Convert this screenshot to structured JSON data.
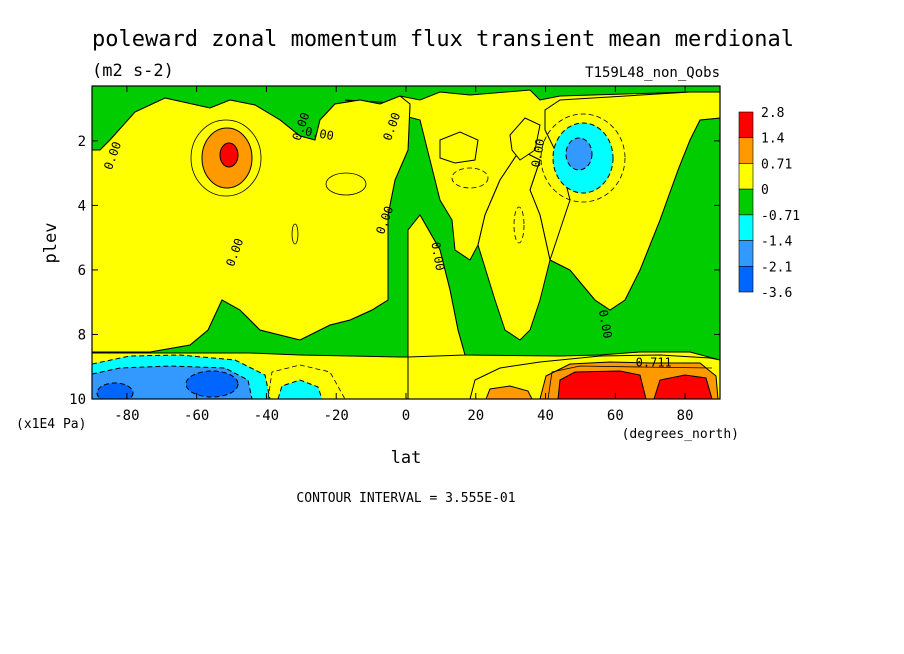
{
  "chart_data": {
    "type": "heatmap",
    "title": "poleward zonal momentum flux transient mean merdional",
    "units": "(m2 s-2)",
    "dataset": "T159L48_non_Qobs",
    "xlabel": "lat",
    "xunits": "(degrees_north)",
    "ylabel": "plev",
    "yunits": "(x1E4 Pa)",
    "xlim": [
      -90,
      90
    ],
    "ylim": [
      10,
      0.3
    ],
    "xticks": [
      -80,
      -60,
      -40,
      -20,
      0,
      20,
      40,
      60,
      80
    ],
    "xtick_labels": [
      "-80",
      "-60",
      "-40",
      "-20",
      "0",
      "20",
      "40",
      "60",
      "80"
    ],
    "yticks": [
      2,
      4,
      6,
      8,
      10
    ],
    "ytick_labels": [
      "2",
      "4",
      "6",
      "8",
      "10"
    ],
    "contour_interval_text": "CONTOUR INTERVAL = 3.555E-01",
    "colorbar": {
      "labels": [
        "2.8",
        "1.4",
        "0.71",
        "0",
        "-0.71",
        "-1.4",
        "-2.1",
        "-3.6"
      ],
      "colors": [
        "#ff0000",
        "#ff9900",
        "#ffff00",
        "#00cc00",
        "#00ffff",
        "#3399ff",
        "#0066ff"
      ]
    },
    "contour_labels": [
      {
        "text": "0.00",
        "lat": -83,
        "plev": 2.5,
        "rot": -70
      },
      {
        "text": "0.00",
        "lat": -48,
        "plev": 5.5,
        "rot": -70
      },
      {
        "text": "0.00",
        "lat": -29,
        "plev": 1.6,
        "rot": -70
      },
      {
        "text": "0.00",
        "lat": -25,
        "plev": 1.9,
        "rot": 10
      },
      {
        "text": "0.00",
        "lat": -5,
        "plev": 4.5,
        "rot": -70
      },
      {
        "text": "0.00",
        "lat": -3,
        "plev": 1.6,
        "rot": -70
      },
      {
        "text": "0.00",
        "lat": 8,
        "plev": 5.6,
        "rot": 80
      },
      {
        "text": "0.00",
        "lat": 39,
        "plev": 2.4,
        "rot": -80
      },
      {
        "text": "0.00",
        "lat": 56,
        "plev": 7.7,
        "rot": 80
      },
      {
        "text": "0.711",
        "lat": 71,
        "plev": 9.0,
        "rot": 0
      }
    ],
    "features": [
      {
        "kind": "max",
        "lat": -51,
        "plev": 2.4,
        "value": 2.8
      },
      {
        "kind": "min",
        "lat": 48,
        "plev": 2.3,
        "value": -2.1
      },
      {
        "kind": "max",
        "lat": 53,
        "plev": 9.6,
        "value": 2.8
      },
      {
        "kind": "max",
        "lat": 82,
        "plev": 9.6,
        "value": 2.8
      },
      {
        "kind": "min",
        "lat": -55,
        "plev": 9.5,
        "value": -2.1
      },
      {
        "kind": "min",
        "lat": -85,
        "plev": 9.6,
        "value": -2.1
      }
    ],
    "grid": false,
    "legend": "right"
  }
}
